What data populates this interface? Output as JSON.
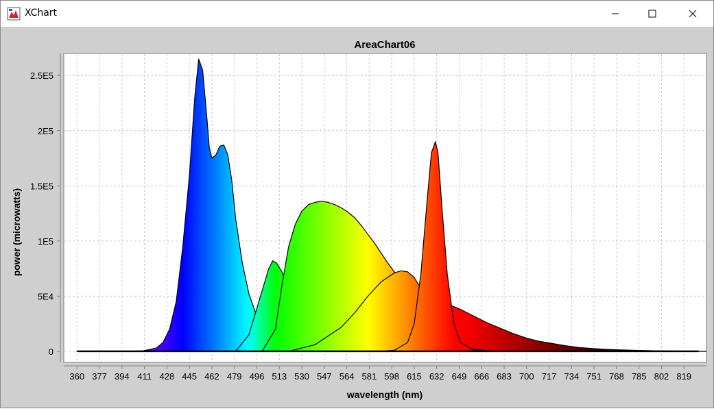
{
  "window": {
    "title": "XChart",
    "icons": {
      "app": "xchart-app-icon",
      "minimize": "minimize-icon",
      "maximize": "maximize-icon",
      "close": "close-icon"
    }
  },
  "chart_data": {
    "type": "area",
    "title": "AreaChart06",
    "xlabel": "wavelength (nm)",
    "ylabel": "power (microwatts)",
    "xlim": [
      350,
      836
    ],
    "ylim": [
      -10000,
      270000
    ],
    "x_ticks": [
      360,
      377,
      394,
      411,
      428,
      445,
      462,
      479,
      496,
      513,
      530,
      547,
      564,
      581,
      598,
      615,
      632,
      649,
      666,
      683,
      700,
      717,
      734,
      751,
      768,
      785,
      802,
      819
    ],
    "y_ticks": [
      {
        "value": 0,
        "label": "0"
      },
      {
        "value": 50000,
        "label": "5E4"
      },
      {
        "value": 100000,
        "label": "1E5"
      },
      {
        "value": 150000,
        "label": "1.5E5"
      },
      {
        "value": 200000,
        "label": "2E5"
      },
      {
        "value": 250000,
        "label": "2.5E5"
      }
    ],
    "grid": true,
    "legend": "none",
    "series": [
      {
        "x": [
          360,
          400,
          410,
          420,
          425,
          430,
          435,
          440,
          445,
          449,
          452,
          455,
          458,
          460,
          462,
          465,
          468,
          471,
          474,
          477,
          480,
          485,
          490,
          495,
          500,
          505,
          510,
          520,
          530,
          540,
          550,
          836
        ],
        "values": [
          0,
          0,
          500,
          3000,
          8000,
          20000,
          45000,
          95000,
          160000,
          230000,
          265000,
          255000,
          215000,
          185000,
          175000,
          178000,
          186000,
          187000,
          178000,
          155000,
          120000,
          80000,
          52000,
          35000,
          22000,
          14000,
          8000,
          3000,
          1000,
          300,
          0,
          0
        ]
      },
      {
        "x": [
          360,
          480,
          490,
          495,
          500,
          505,
          508,
          511,
          515,
          520,
          525,
          530,
          535,
          540,
          545,
          550,
          836
        ],
        "values": [
          0,
          0,
          15000,
          35000,
          55000,
          75000,
          82000,
          80000,
          72000,
          55000,
          40000,
          28000,
          18000,
          10000,
          5000,
          2000,
          0
        ]
      },
      {
        "x": [
          360,
          500,
          510,
          515,
          520,
          525,
          530,
          535,
          540,
          545,
          550,
          555,
          560,
          565,
          570,
          575,
          580,
          585,
          590,
          595,
          600,
          605,
          610,
          615,
          620,
          625,
          630,
          640,
          650,
          660,
          670,
          680,
          690,
          700,
          710,
          720,
          730,
          740,
          750,
          760,
          780,
          800,
          820,
          836
        ],
        "values": [
          0,
          0,
          20000,
          60000,
          95000,
          115000,
          127000,
          133000,
          135000,
          136000,
          135000,
          133000,
          130000,
          126000,
          121000,
          114000,
          106000,
          98000,
          89000,
          80000,
          72000,
          66000,
          61000,
          57000,
          54000,
          51000,
          48000,
          43000,
          38000,
          32000,
          26000,
          21000,
          16000,
          12000,
          9000,
          7000,
          5000,
          3500,
          2500,
          1800,
          900,
          400,
          100,
          0
        ]
      },
      {
        "x": [
          360,
          520,
          540,
          560,
          570,
          580,
          590,
          600,
          605,
          610,
          615,
          620,
          625,
          630,
          640,
          650,
          660,
          670,
          680,
          700,
          836
        ],
        "values": [
          0,
          0,
          6000,
          22000,
          35000,
          50000,
          63000,
          71000,
          73000,
          72000,
          67000,
          57000,
          44000,
          32000,
          15000,
          6000,
          2000,
          500,
          0,
          0,
          0
        ]
      },
      {
        "x": [
          360,
          590,
          600,
          610,
          615,
          620,
          625,
          628,
          631,
          633,
          636,
          640,
          645,
          650,
          660,
          670,
          836
        ],
        "values": [
          0,
          0,
          1000,
          8000,
          25000,
          70000,
          140000,
          180000,
          190000,
          180000,
          130000,
          70000,
          25000,
          8000,
          1000,
          0,
          0
        ]
      }
    ]
  }
}
